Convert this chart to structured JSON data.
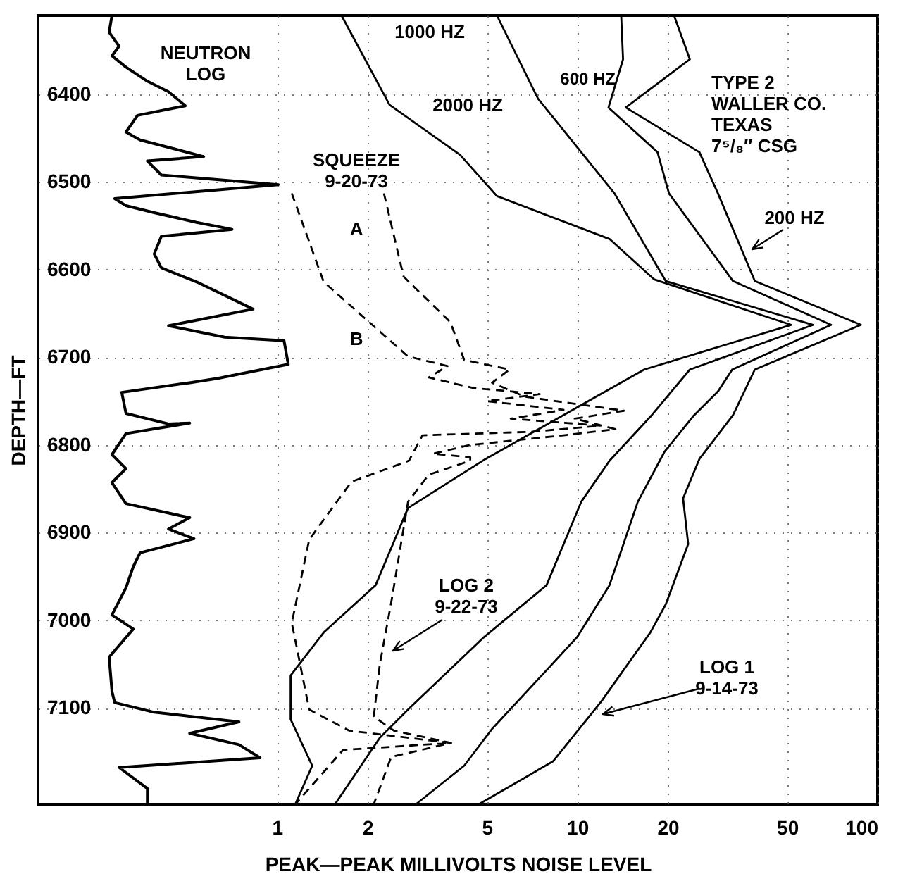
{
  "chart_data": {
    "type": "line",
    "xlabel": "PEAK—PEAK MILLIVOLTS NOISE LEVEL",
    "ylabel": "DEPTH—FT",
    "log": "x",
    "xlim": [
      0.16,
      100
    ],
    "xticks": [
      1,
      2,
      5,
      10,
      20,
      50,
      100
    ],
    "ylim": [
      7210,
      6310
    ],
    "yticks": [
      6400,
      6500,
      6600,
      6700,
      6800,
      6900,
      7000,
      7100
    ],
    "grid": true,
    "marker": "none",
    "series": [
      {
        "name": "NEUTRON\nLOG",
        "color": "#000000",
        "line_style": "solid",
        "x": [
          0.282,
          0.276,
          0.298,
          0.282,
          0.314,
          0.37,
          0.435,
          0.495,
          0.343,
          0.314,
          0.35,
          0.57,
          0.37,
          0.412,
          1.01,
          0.288,
          0.314,
          0.39,
          0.54,
          0.708,
          0.412,
          0.39,
          0.412,
          0.54,
          0.832,
          0.435,
          0.67,
          1.055,
          1.09,
          0.635,
          0.512,
          0.304,
          0.314,
          0.435,
          0.512,
          0.314,
          0.282,
          0.314,
          0.282,
          0.314,
          0.512,
          0.435,
          0.529,
          0.35,
          0.332,
          0.314,
          0.282,
          0.332,
          0.276,
          0.282,
          0.288,
          0.39,
          0.747,
          0.512,
          0.747,
          0.878,
          0.298,
          0.37,
          0.37
        ],
        "values": [
          6310,
          6329,
          6345,
          6356,
          6369,
          6385,
          6397,
          6413,
          6424,
          6443,
          6452,
          6471,
          6476,
          6492,
          6503,
          6519,
          6527,
          6535,
          6546,
          6554,
          6562,
          6582,
          6598,
          6614,
          6645,
          6664,
          6677,
          6681,
          6708,
          6724,
          6729,
          6740,
          6764,
          6776,
          6775,
          6787,
          6811,
          6827,
          6843,
          6867,
          6883,
          6896,
          6907,
          6923,
          6939,
          6963,
          6994,
          7010,
          7042,
          7081,
          7094,
          7105,
          7116,
          7129,
          7142,
          7157,
          7168,
          7192,
          7210
        ]
      },
      {
        "name": "2000 HZ",
        "color": "#000000",
        "line_style": "solid",
        "x": [
          1.64,
          2.37,
          4.07,
          5.4,
          12.8,
          18.0,
          51.5,
          16.7,
          4.95,
          2.73,
          2.13,
          1.43,
          1.11,
          1.11,
          1.31,
          1.15
        ],
        "values": [
          6310,
          6412,
          6469,
          6516,
          6565,
          6611,
          6663,
          6714,
          6816,
          6872,
          6960,
          7014,
          7063,
          7113,
          7166,
          7210
        ]
      },
      {
        "name": "1000 HZ",
        "color": "#000000",
        "line_style": "solid",
        "x": [
          5.4,
          7.4,
          13.3,
          19.7,
          61,
          23.7,
          17.7,
          12.8,
          10.3,
          7.9,
          4.9,
          2.73,
          2.2,
          1.56
        ],
        "values": [
          6310,
          6405,
          6513,
          6613,
          6663,
          6714,
          6766,
          6818,
          6865,
          6960,
          7019,
          7102,
          7134,
          7210
        ]
      },
      {
        "name": "600 HZ",
        "color": "#000000",
        "line_style": "solid",
        "x": [
          14,
          14.2,
          12.7,
          18.5,
          20.2,
          33,
          70,
          32.8,
          29.4,
          24.5,
          19.5,
          15.9,
          12.8,
          10,
          8,
          5.2,
          4.2,
          2.9
        ],
        "values": [
          6310,
          6360,
          6415,
          6466,
          6513,
          6613,
          6663,
          6714,
          6739,
          6766,
          6808,
          6865,
          6960,
          7019,
          7055,
          7124,
          7166,
          7210
        ]
      },
      {
        "name": "200 HZ",
        "color": "#000000",
        "line_style": "solid",
        "x": [
          21,
          23.7,
          14.5,
          25.5,
          29.4,
          39,
          88,
          39,
          33,
          25.5,
          22.5,
          23.4,
          19.7,
          17.5,
          12,
          8.3,
          4.7
        ],
        "values": [
          6310,
          6360,
          6415,
          6466,
          6513,
          6613,
          6663,
          6714,
          6766,
          6816,
          6861,
          6913,
          6982,
          7014,
          7093,
          7161,
          7210
        ]
      },
      {
        "color": "#000000",
        "line_style": "dashed",
        "x": [
          1.12,
          1.43,
          2.73,
          3.7,
          3.2,
          4.5,
          7.5,
          5,
          9,
          6,
          12,
          7,
          3.05,
          2.75,
          1.77,
          1.28,
          1.12,
          1.28,
          1.74,
          3.8,
          1.66,
          1.15
        ],
        "values": [
          6513,
          6614,
          6699,
          6710,
          6723,
          6735,
          6742,
          6750,
          6760,
          6770,
          6778,
          6785,
          6789,
          6818,
          6842,
          6908,
          7003,
          7102,
          7126,
          7140,
          7148,
          7210
        ]
      },
      {
        "color": "#000000",
        "line_style": "dashed",
        "x": [
          2.27,
          2.64,
          3.78,
          4.2,
          5.95,
          5.2,
          6.7,
          14.3,
          9.8,
          13.4,
          9,
          4.4,
          3.3,
          4.4,
          4.4,
          3.2,
          2.73,
          2.4,
          2.2,
          2.1,
          2.45,
          3.8,
          2.4,
          2.1
        ],
        "values": [
          6513,
          6608,
          6660,
          6703,
          6714,
          6729,
          6745,
          6761,
          6770,
          6782,
          6789,
          6800,
          6810,
          6814,
          6818,
          6834,
          6865,
          6980,
          7050,
          7110,
          7126,
          7140,
          7156,
          7210
        ]
      }
    ],
    "annotations": [
      "TYPE 2\nWALLER CO.\nTEXAS\n7⁵/₈″ CSG",
      "SQUEEZE\n9-20-73",
      "A",
      "B",
      "LOG 2\n9-22-73",
      "LOG 1\n9-14-73"
    ]
  }
}
